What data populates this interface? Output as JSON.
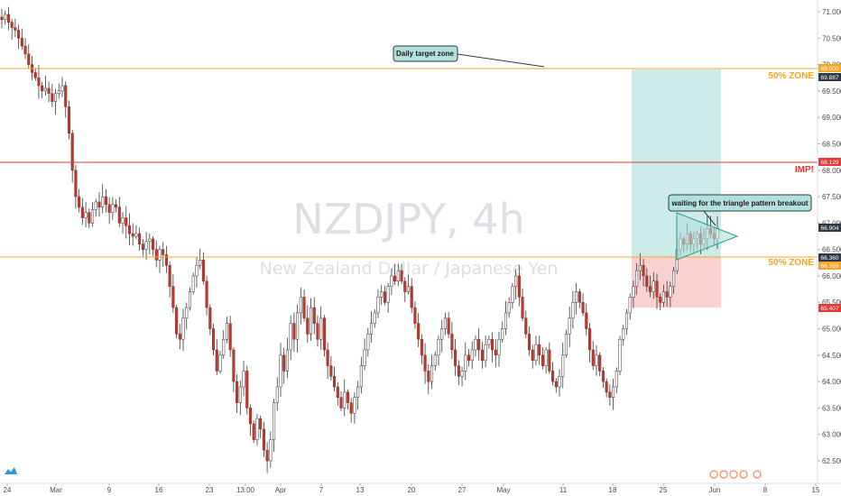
{
  "chart_data": {
    "type": "candlestick",
    "watermark": {
      "symbol": "NZDJPY, 4h",
      "description": "New Zealand Dollar / Japanese Yen"
    },
    "ylim": [
      62.2,
      71.2
    ],
    "y_ticks": [
      "71.000",
      "70.500",
      "70.000",
      "69.500",
      "69.000",
      "68.500",
      "68.000",
      "67.500",
      "67.000",
      "66.500",
      "66.000",
      "65.500",
      "65.000",
      "64.500",
      "64.000",
      "63.500",
      "63.000",
      "62.500"
    ],
    "x_ticks": [
      "24",
      "Mar",
      "9",
      "16",
      "23",
      "13:00",
      "Apr",
      "7",
      "13",
      "20",
      "27",
      "May",
      "11",
      "18",
      "25",
      "Jun",
      "8",
      "15"
    ],
    "levels": [
      {
        "name": "daily-target",
        "price": 69.9,
        "color": "#f5a623",
        "label": "",
        "tag": "69.900"
      },
      {
        "name": "imp",
        "price": 68.129,
        "color": "#e53935",
        "label": "IMP!",
        "tag": "68.129"
      },
      {
        "name": "fifty-zone",
        "price": 66.36,
        "color": "#f5a623",
        "label": "50% ZONE",
        "tag": "66.360"
      }
    ],
    "top_zone_label": "50% ZONE",
    "price_tags": [
      {
        "value": "69.887",
        "color": "#2d3a45"
      },
      {
        "value": "66.904",
        "color": "#2d3a45"
      },
      {
        "value": "66.359",
        "color": "#f5a623"
      },
      {
        "value": "65.407",
        "color": "#e53935"
      }
    ],
    "position": {
      "entry": 66.36,
      "target": 69.887,
      "stop": 65.407,
      "target_color": "#b2e0dc",
      "stop_color": "#f7c6c6"
    },
    "annotations": [
      {
        "name": "daily-target-callout",
        "text": "Daily target zone"
      },
      {
        "name": "triangle-callout",
        "text": "waiting for the triangle pattern breakout"
      }
    ],
    "close_series": [
      70.85,
      70.95,
      70.8,
      70.7,
      70.65,
      70.5,
      70.35,
      70.2,
      70.0,
      69.85,
      69.75,
      69.6,
      69.5,
      69.55,
      69.45,
      69.3,
      69.45,
      69.5,
      69.6,
      69.2,
      68.7,
      68.0,
      67.5,
      67.3,
      67.1,
      67.2,
      67.0,
      67.25,
      67.4,
      67.3,
      67.5,
      67.35,
      67.2,
      67.35,
      67.3,
      67.0,
      67.1,
      66.95,
      66.8,
      66.75,
      66.8,
      66.6,
      66.5,
      66.65,
      66.7,
      66.5,
      66.3,
      66.5,
      66.4,
      66.2,
      65.8,
      65.4,
      64.9,
      64.8,
      65.2,
      65.4,
      65.7,
      66.0,
      66.2,
      66.3,
      65.9,
      65.4,
      65.0,
      64.6,
      64.2,
      64.5,
      64.8,
      65.1,
      64.6,
      64.0,
      63.6,
      63.9,
      64.2,
      63.5,
      63.2,
      62.9,
      63.3,
      63.1,
      62.7,
      62.5,
      62.9,
      63.6,
      63.9,
      64.5,
      64.2,
      64.6,
      65.1,
      64.8,
      65.3,
      65.6,
      65.2,
      64.9,
      65.4,
      65.1,
      64.8,
      65.2,
      64.6,
      64.3,
      64.1,
      63.9,
      63.7,
      63.5,
      63.8,
      63.6,
      63.4,
      63.7,
      63.9,
      64.3,
      64.6,
      64.9,
      65.1,
      65.3,
      65.6,
      65.7,
      65.5,
      65.8,
      66.0,
      65.9,
      66.1,
      65.9,
      65.7,
      65.8,
      65.4,
      65.1,
      64.8,
      64.5,
      64.2,
      64.0,
      64.3,
      64.5,
      64.8,
      65.0,
      65.2,
      64.9,
      64.6,
      64.3,
      64.1,
      64.2,
      64.5,
      64.4,
      64.6,
      64.8,
      64.6,
      64.4,
      64.7,
      64.8,
      64.6,
      64.5,
      64.8,
      65.0,
      65.3,
      65.5,
      65.8,
      66.0,
      65.6,
      65.2,
      64.9,
      64.6,
      64.4,
      64.7,
      64.5,
      64.3,
      64.6,
      64.2,
      64.0,
      63.9,
      64.1,
      64.5,
      64.9,
      65.2,
      65.5,
      65.7,
      65.5,
      65.3,
      65.0,
      64.6,
      64.3,
      64.5,
      64.2,
      64.0,
      63.8,
      63.7,
      63.9,
      64.2,
      64.8,
      65.0,
      65.3,
      65.6,
      65.8,
      66.1,
      66.2,
      66.0,
      65.8,
      65.7,
      65.9,
      65.6,
      65.5,
      65.7,
      65.6,
      65.8,
      66.1,
      66.5,
      66.7,
      66.6,
      66.8,
      66.6,
      66.7,
      66.8,
      66.6,
      66.7,
      66.9,
      66.8,
      66.7,
      66.9
    ]
  }
}
